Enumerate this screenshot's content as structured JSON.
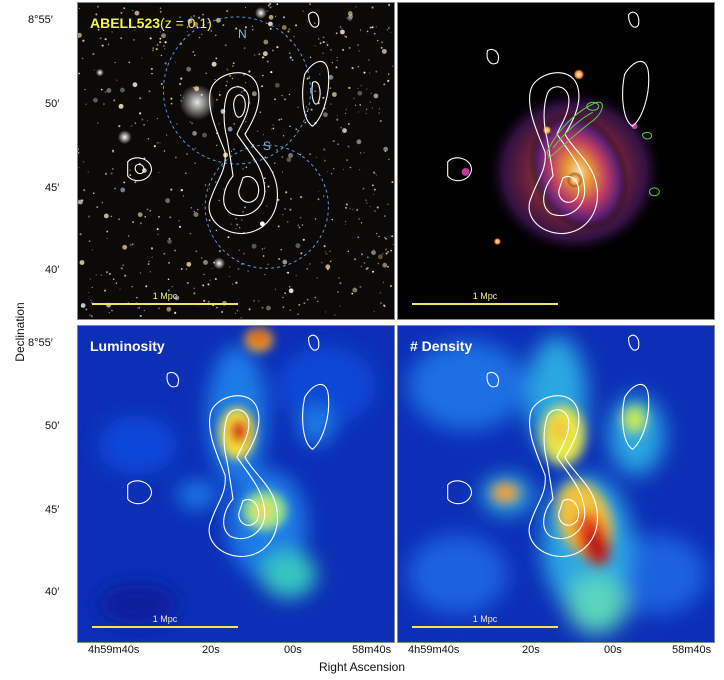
{
  "panels": {
    "optical": {
      "title_main": "ABELL523",
      "title_sub": "(z = 0.1)",
      "scalebar": "1 Mpc",
      "circle_labels": [
        "N",
        "S"
      ]
    },
    "xray": {
      "scalebar": "1 Mpc"
    },
    "luminosity": {
      "title": "Luminosity",
      "scalebar": "1 Mpc"
    },
    "density": {
      "title": "# Density",
      "scalebar": "1 Mpc"
    }
  },
  "axes": {
    "ylabel": "Declination",
    "xlabel": "Right Ascension",
    "yticks_top": [
      "8°55′",
      "50′",
      "45′",
      "40′"
    ],
    "yticks_bottom": [
      "8°55′",
      "50′",
      "45′",
      "40′"
    ],
    "xticks_left": [
      "4h59m40s",
      "20s",
      "00s",
      "58m40s"
    ],
    "xticks_right": [
      "4h59m40s",
      "20s",
      "00s",
      "58m40s"
    ]
  },
  "colors": {
    "contour": "#ffffff",
    "radio_green": "#5fce45",
    "scalebar": "#f3e35a",
    "title_yellow": "#f4f442",
    "circle": "#5e95d8"
  }
}
